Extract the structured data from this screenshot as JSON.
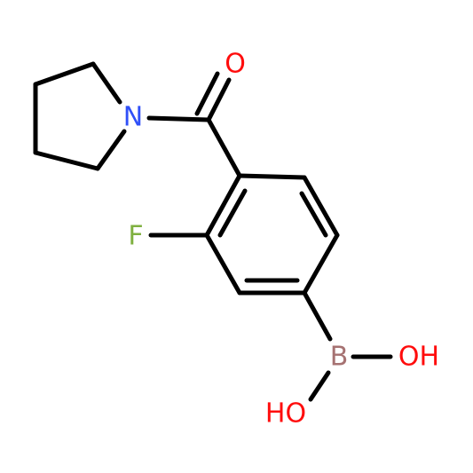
{
  "atoms": {
    "oxygen": "O",
    "nitrogen": "N",
    "fluorine": "F",
    "boron": "B",
    "hydroxyl_right": "OH",
    "hydroxyl_left": "HO"
  }
}
